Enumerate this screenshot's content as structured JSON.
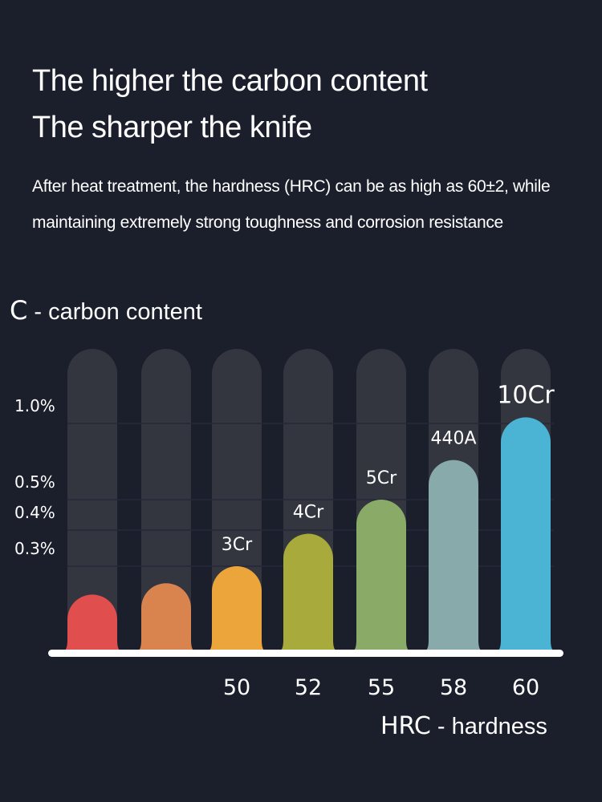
{
  "title_line1": "The higher the carbon content",
  "title_line2": "The sharper the knife",
  "subtitle": "After heat treatment, the hardness (HRC) can be as high as 60±2, while maintaining extremely strong toughness and corrosion resistance",
  "chart_data": {
    "type": "bar",
    "ylabel_symbol": "C",
    "ylabel": "- carbon content",
    "xlabel_symbol": "HRC",
    "xlabel": "- hardness",
    "y_ticks": [
      {
        "value": 0.3,
        "label": "0.3%"
      },
      {
        "value": 0.4,
        "label": "0.4%"
      },
      {
        "value": 0.5,
        "label": "0.5%"
      },
      {
        "value": 1.0,
        "label": "1.0%"
      }
    ],
    "grid": true,
    "bars": [
      {
        "name": "",
        "hrc": "",
        "value": 0.2,
        "color": "#e04e4e"
      },
      {
        "name": "",
        "hrc": "",
        "value": 0.24,
        "color": "#d9834f"
      },
      {
        "name": "3Cr",
        "hrc": "50",
        "value": 0.3,
        "color": "#eba53a"
      },
      {
        "name": "4Cr",
        "hrc": "52",
        "value": 0.39,
        "color": "#a8aa3b"
      },
      {
        "name": "5Cr",
        "hrc": "55",
        "value": 0.5,
        "color": "#89ab67"
      },
      {
        "name": "440A",
        "hrc": "58",
        "value": 0.76,
        "color": "#88aaab"
      },
      {
        "name": "10Cr",
        "hrc": "60",
        "value": 1.04,
        "color": "#4bb3d4"
      }
    ]
  }
}
